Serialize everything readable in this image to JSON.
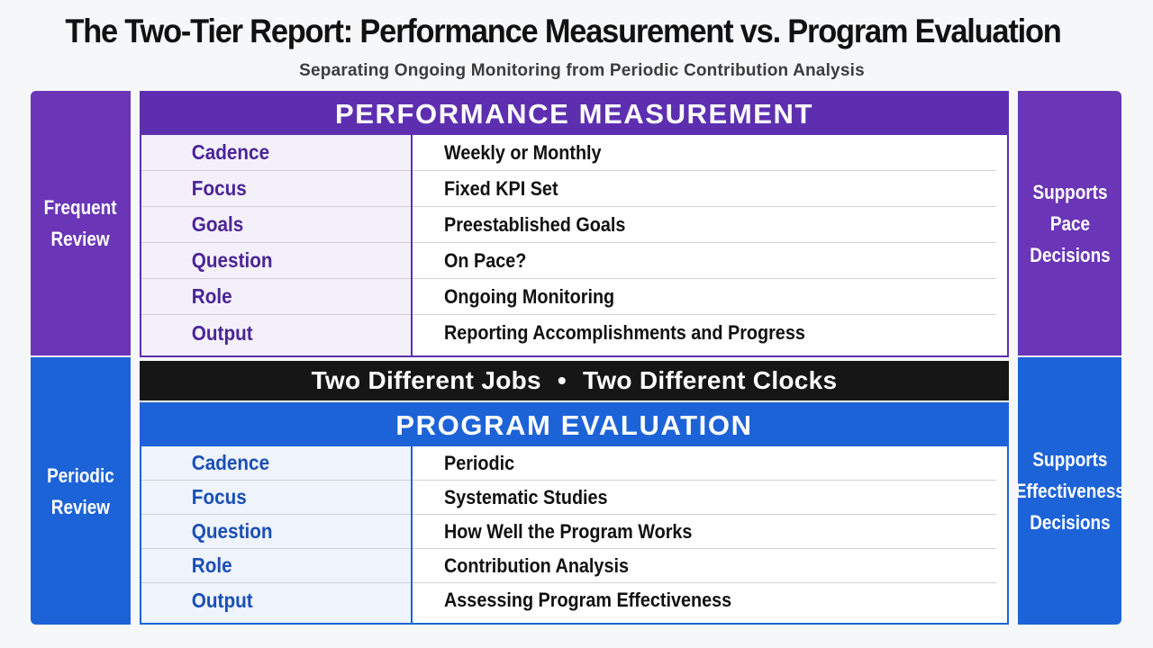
{
  "title": "The Two-Tier Report: Performance Measurement vs. Program Evaluation",
  "subtitle": "Separating Ongoing Monitoring from Periodic Contribution Analysis",
  "left_top": "Frequent\nReview",
  "left_bottom": "Periodic\nReview",
  "right_top": "Supports\nPace\nDecisions",
  "right_bottom": "Supports\nEffectiveness\nDecisions",
  "performance_measurement": {
    "heading": "PERFORMANCE MEASUREMENT",
    "rows": [
      {
        "label": "Cadence",
        "value": "Weekly or Monthly"
      },
      {
        "label": "Focus",
        "value": "Fixed KPI Set"
      },
      {
        "label": "Goals",
        "value": "Preestablished Goals"
      },
      {
        "label": "Question",
        "value": "On Pace?"
      },
      {
        "label": "Role",
        "value": "Ongoing Monitoring"
      },
      {
        "label": "Output",
        "value": "Reporting Accomplishments and Progress"
      }
    ]
  },
  "banner": {
    "left": "Two Different Jobs",
    "bullet": "•",
    "right": "Two Different Clocks"
  },
  "program_evaluation": {
    "heading": "PROGRAM EVALUATION",
    "rows": [
      {
        "label": "Cadence",
        "value": "Periodic"
      },
      {
        "label": "Focus",
        "value": "Systematic Studies"
      },
      {
        "label": "Question",
        "value": "How Well the Program Works"
      },
      {
        "label": "Role",
        "value": "Contribution Analysis"
      },
      {
        "label": "Output",
        "value": "Assessing Program Effectiveness"
      }
    ]
  },
  "colors": {
    "purple": "#5d2fb0",
    "blue": "#1d63d8",
    "banner": "#161616"
  }
}
